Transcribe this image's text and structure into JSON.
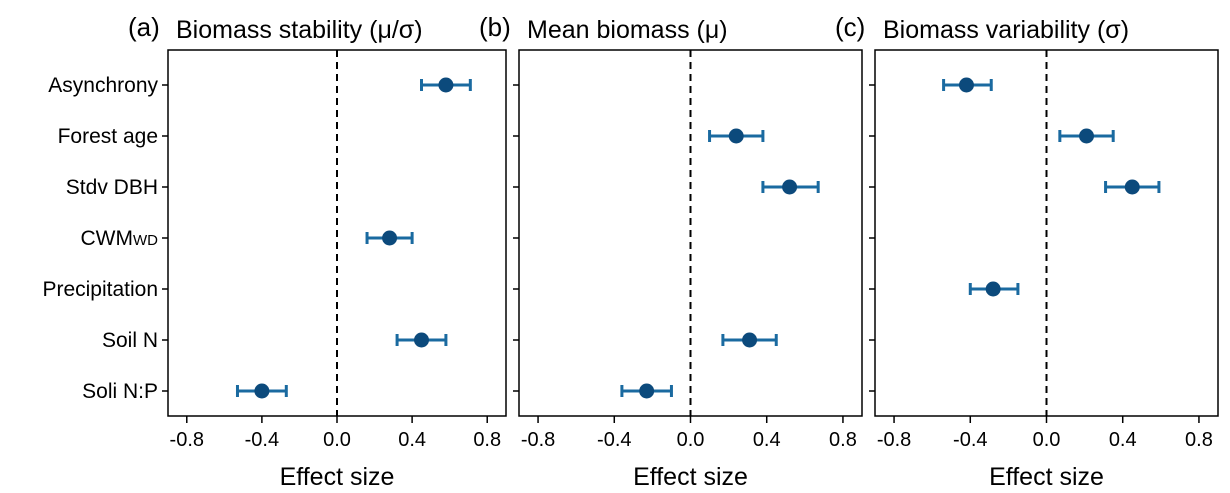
{
  "colors": {
    "marker": "#0c4a7c",
    "errorbar": "#1a6aa0",
    "frame": "#000000",
    "zero_line": "#000000"
  },
  "categories": [
    {
      "main": "Asynchrony",
      "sub": ""
    },
    {
      "main": "Forest age",
      "sub": ""
    },
    {
      "main": "Stdv DBH",
      "sub": ""
    },
    {
      "main": "CWM",
      "sub": "WD"
    },
    {
      "main": "Precipitation",
      "sub": ""
    },
    {
      "main": "Soil N",
      "sub": ""
    },
    {
      "main": "Soli N:P",
      "sub": ""
    }
  ],
  "chart_data": [
    {
      "type": "scatter",
      "panel_letter": "(a)",
      "title": "Biomass stability (μ/σ)",
      "xlabel": "Effect size",
      "xlim": [
        -0.9,
        0.9
      ],
      "xticks": [
        -0.8,
        -0.4,
        0.0,
        0.4,
        0.8
      ],
      "xtick_labels": [
        "-0.8",
        "-0.4",
        "0.0",
        "0.4",
        "0.8"
      ],
      "zero_line": 0.0,
      "points": [
        {
          "category": "Asynchrony",
          "estimate": 0.58,
          "lower": 0.45,
          "upper": 0.71
        },
        {
          "category": "CWMWD",
          "estimate": 0.28,
          "lower": 0.16,
          "upper": 0.4
        },
        {
          "category": "Soil N",
          "estimate": 0.45,
          "lower": 0.32,
          "upper": 0.58
        },
        {
          "category": "Soli N:P",
          "estimate": -0.4,
          "lower": -0.53,
          "upper": -0.27
        }
      ]
    },
    {
      "type": "scatter",
      "panel_letter": "(b)",
      "title": "Mean biomass (μ)",
      "xlabel": "Effect size",
      "xlim": [
        -0.9,
        0.9
      ],
      "xticks": [
        -0.8,
        -0.4,
        0.0,
        0.4,
        0.8
      ],
      "xtick_labels": [
        "-0.8",
        "-0.4",
        "0.0",
        "0.4",
        "0.8"
      ],
      "zero_line": 0.0,
      "points": [
        {
          "category": "Forest age",
          "estimate": 0.24,
          "lower": 0.1,
          "upper": 0.38
        },
        {
          "category": "Stdv DBH",
          "estimate": 0.52,
          "lower": 0.38,
          "upper": 0.67
        },
        {
          "category": "Soil N",
          "estimate": 0.31,
          "lower": 0.17,
          "upper": 0.45
        },
        {
          "category": "Soli N:P",
          "estimate": -0.23,
          "lower": -0.36,
          "upper": -0.1
        }
      ]
    },
    {
      "type": "scatter",
      "panel_letter": "(c)",
      "title": "Biomass variability (σ)",
      "xlabel": "Effect size",
      "xlim": [
        -0.9,
        0.9
      ],
      "xticks": [
        -0.8,
        -0.4,
        0.0,
        0.4,
        0.8
      ],
      "xtick_labels": [
        "-0.8",
        "-0.4",
        "0.0",
        "0.4",
        "0.8"
      ],
      "zero_line": 0.0,
      "points": [
        {
          "category": "Asynchrony",
          "estimate": -0.42,
          "lower": -0.54,
          "upper": -0.29
        },
        {
          "category": "Forest age",
          "estimate": 0.21,
          "lower": 0.07,
          "upper": 0.35
        },
        {
          "category": "Stdv DBH",
          "estimate": 0.45,
          "lower": 0.31,
          "upper": 0.59
        },
        {
          "category": "Precipitation",
          "estimate": -0.28,
          "lower": -0.4,
          "upper": -0.15
        }
      ]
    }
  ]
}
